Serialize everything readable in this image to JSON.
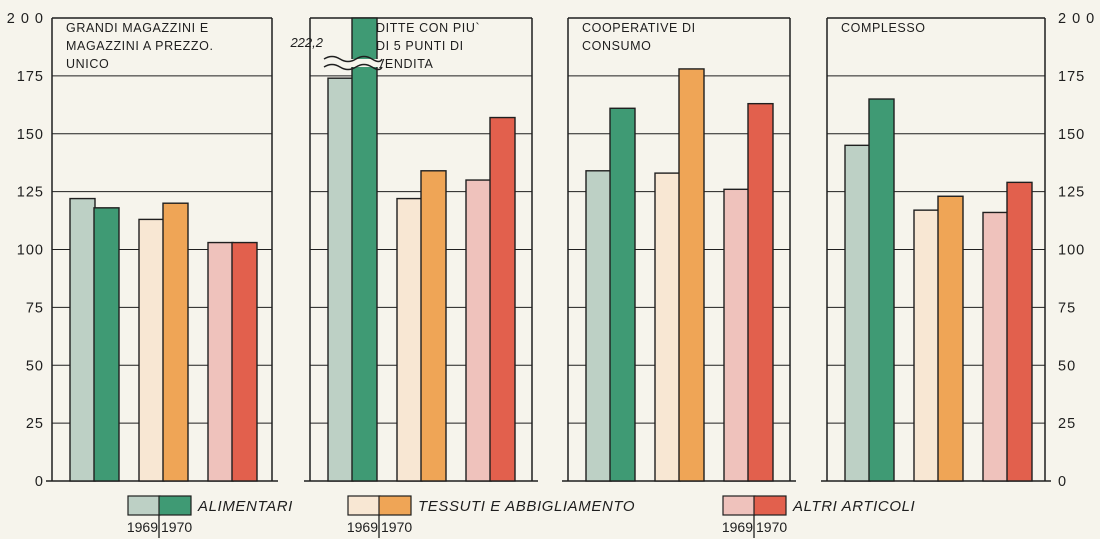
{
  "chart_data": {
    "type": "bar",
    "ylim": [
      0,
      200
    ],
    "yticks": [
      "0",
      "25",
      "50",
      "75",
      "100",
      "125",
      "150",
      "175",
      "2 0 0"
    ],
    "grid": true,
    "panels": [
      {
        "title": [
          "GRANDI MAGAZZINI E",
          "MAGAZZINI A PREZZO.",
          "UNICO"
        ],
        "values": {
          "alimentari": [
            122,
            118
          ],
          "tessuti": [
            113,
            120
          ],
          "altri": [
            103,
            103
          ]
        }
      },
      {
        "title": [
          "DITTE CON PIU`",
          "DI 5 PUNTI DI",
          "VENDITA"
        ],
        "values": {
          "alimentari": [
            174,
            222.2
          ],
          "tessuti": [
            122,
            134
          ],
          "altri": [
            130,
            157
          ]
        },
        "broken_bar_label": "222,2"
      },
      {
        "title": [
          "COOPERATIVE DI",
          "CONSUMO"
        ],
        "values": {
          "alimentari": [
            134,
            161
          ],
          "tessuti": [
            133,
            178
          ],
          "altri": [
            126,
            163
          ]
        }
      },
      {
        "title": [
          "COMPLESSO"
        ],
        "values": {
          "alimentari": [
            145,
            165
          ],
          "tessuti": [
            117,
            123
          ],
          "altri": [
            116,
            129
          ]
        }
      }
    ],
    "series": [
      {
        "key": "alimentari",
        "name": "ALIMENTARI"
      },
      {
        "key": "tessuti",
        "name": "TESSUTI E ABBIGLIAMENTO"
      },
      {
        "key": "altri",
        "name": "ALTRI ARTICOLI"
      }
    ],
    "years": [
      "1969",
      "1970"
    ],
    "colors": {
      "alimentari_1969": "#bdd0c5",
      "alimentari_1970": "#3f9a74",
      "tessuti_1969": "#f8e7d3",
      "tessuti_1970": "#efa556",
      "altri_1969": "#efc2bc",
      "altri_1970": "#e2604d",
      "line": "#1f1f1f",
      "paper": "#f6f4ec"
    }
  }
}
